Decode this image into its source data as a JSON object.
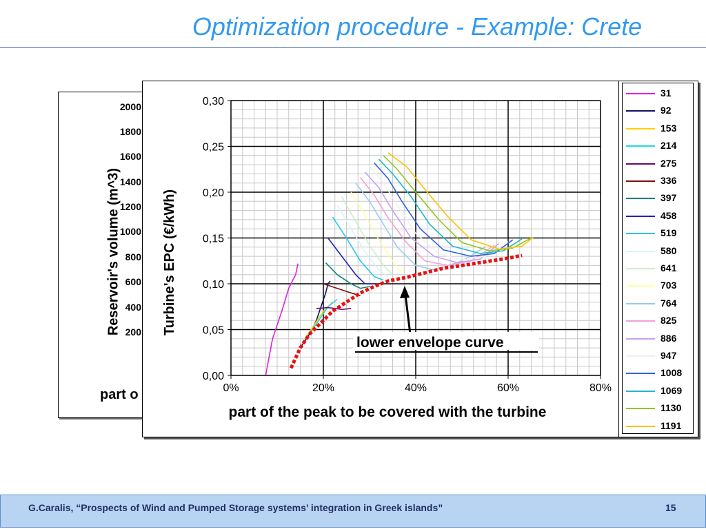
{
  "slide": {
    "title": "Optimization procedure - Example: Crete",
    "footer_text": "G.Caralis, “Prospects of Wind and Pumped Storage systems’ integration in Greek islands”",
    "page_number": "15"
  },
  "background_chart": {
    "ylabel": "Reservoir's volume (m^3)",
    "yticks": [
      "2000",
      "1800",
      "1600",
      "1400",
      "1200",
      "1000",
      "800",
      "600",
      "400",
      "200"
    ],
    "xlabel_fragment": "part o"
  },
  "chart_data": {
    "type": "line",
    "xlabel": "part of the peak to be covered with the turbine",
    "ylabel": "Turbine's EPC (€/kWh)",
    "xlim": [
      0,
      0.8
    ],
    "ylim": [
      0,
      0.3
    ],
    "xticks": [
      "0%",
      "20%",
      "40%",
      "60%",
      "80%"
    ],
    "yticks": [
      "0,00",
      "0,05",
      "0,10",
      "0,15",
      "0,20",
      "0,25",
      "0,30"
    ],
    "grid": true,
    "legend_position": "right",
    "annotation": "lower envelope curve",
    "series": [
      {
        "name": "31",
        "color": "#e020e0",
        "x": [
          0.075,
          0.09,
          0.11,
          0.125,
          0.14,
          0.145
        ],
        "y": [
          0.0,
          0.04,
          0.07,
          0.095,
          0.11,
          0.122
        ]
      },
      {
        "name": "92",
        "color": "#101060",
        "x": [
          0.15,
          0.17,
          0.185,
          0.195,
          0.205,
          0.21,
          0.215
        ],
        "y": [
          0.03,
          0.045,
          0.06,
          0.075,
          0.09,
          0.1,
          0.103
        ]
      },
      {
        "name": "153",
        "color": "#ffd000",
        "x": [
          0.16,
          0.18,
          0.2,
          0.22
        ],
        "y": [
          0.04,
          0.055,
          0.07,
          0.08
        ]
      },
      {
        "name": "214",
        "color": "#20d8e0",
        "x": [
          0.17,
          0.19,
          0.21,
          0.23
        ],
        "y": [
          0.045,
          0.06,
          0.075,
          0.083
        ]
      },
      {
        "name": "275",
        "color": "#6a0a6a",
        "x": [
          0.185,
          0.21,
          0.24,
          0.26
        ],
        "y": [
          0.073,
          0.074,
          0.072,
          0.073
        ]
      },
      {
        "name": "336",
        "color": "#7a1010",
        "x": [
          0.2,
          0.23,
          0.26,
          0.28
        ],
        "y": [
          0.1,
          0.095,
          0.09,
          0.087
        ]
      },
      {
        "name": "397",
        "color": "#108080",
        "x": [
          0.205,
          0.23,
          0.26,
          0.28,
          0.3
        ],
        "y": [
          0.123,
          0.11,
          0.1,
          0.095,
          0.097
        ]
      },
      {
        "name": "458",
        "color": "#2020c0",
        "x": [
          0.21,
          0.24,
          0.27,
          0.29,
          0.31
        ],
        "y": [
          0.15,
          0.13,
          0.11,
          0.1,
          0.1
        ]
      },
      {
        "name": "519",
        "color": "#20c8f0",
        "x": [
          0.22,
          0.25,
          0.28,
          0.31,
          0.33
        ],
        "y": [
          0.173,
          0.15,
          0.125,
          0.108,
          0.104
        ]
      },
      {
        "name": "580",
        "color": "#d8f4fa",
        "x": [
          0.23,
          0.26,
          0.29,
          0.32,
          0.34
        ],
        "y": [
          0.186,
          0.16,
          0.135,
          0.115,
          0.108
        ]
      },
      {
        "name": "641",
        "color": "#c8f0c8",
        "x": [
          0.24,
          0.27,
          0.3,
          0.33,
          0.35
        ],
        "y": [
          0.195,
          0.168,
          0.142,
          0.12,
          0.11
        ]
      },
      {
        "name": "703",
        "color": "#ffffa8",
        "x": [
          0.26,
          0.29,
          0.32,
          0.35,
          0.37
        ],
        "y": [
          0.2,
          0.175,
          0.148,
          0.125,
          0.112
        ]
      },
      {
        "name": "764",
        "color": "#9ac8f0",
        "x": [
          0.27,
          0.3,
          0.33,
          0.36,
          0.4,
          0.44,
          0.5,
          0.55
        ],
        "y": [
          0.21,
          0.19,
          0.165,
          0.14,
          0.12,
          0.115,
          0.125,
          0.14
        ]
      },
      {
        "name": "825",
        "color": "#f0a0d8",
        "x": [
          0.28,
          0.31,
          0.34,
          0.38,
          0.42,
          0.47,
          0.52,
          0.57
        ],
        "y": [
          0.216,
          0.197,
          0.172,
          0.145,
          0.125,
          0.12,
          0.125,
          0.142
        ]
      },
      {
        "name": "886",
        "color": "#c8a0f0",
        "x": [
          0.29,
          0.32,
          0.35,
          0.39,
          0.44,
          0.49,
          0.54,
          0.58
        ],
        "y": [
          0.222,
          0.205,
          0.18,
          0.15,
          0.13,
          0.123,
          0.127,
          0.144
        ]
      },
      {
        "name": "947",
        "color": "#f0f0f0",
        "x": [
          0.3,
          0.33,
          0.36,
          0.4,
          0.45,
          0.5,
          0.55,
          0.6
        ],
        "y": [
          0.228,
          0.21,
          0.186,
          0.155,
          0.133,
          0.126,
          0.13,
          0.146
        ]
      },
      {
        "name": "1008",
        "color": "#3060e0",
        "x": [
          0.31,
          0.34,
          0.37,
          0.41,
          0.46,
          0.52,
          0.57,
          0.61
        ],
        "y": [
          0.232,
          0.215,
          0.19,
          0.16,
          0.137,
          0.13,
          0.133,
          0.148
        ]
      },
      {
        "name": "1069",
        "color": "#20b8c8",
        "x": [
          0.32,
          0.35,
          0.39,
          0.43,
          0.48,
          0.54,
          0.59,
          0.63
        ],
        "y": [
          0.236,
          0.22,
          0.195,
          0.165,
          0.141,
          0.133,
          0.136,
          0.149
        ]
      },
      {
        "name": "1130",
        "color": "#90c820",
        "x": [
          0.33,
          0.36,
          0.4,
          0.45,
          0.5,
          0.56,
          0.61,
          0.65
        ],
        "y": [
          0.24,
          0.225,
          0.2,
          0.17,
          0.145,
          0.136,
          0.139,
          0.15
        ]
      },
      {
        "name": "1191",
        "color": "#ffc000",
        "x": [
          0.34,
          0.38,
          0.42,
          0.47,
          0.52,
          0.58,
          0.63,
          0.655
        ],
        "y": [
          0.243,
          0.228,
          0.203,
          0.173,
          0.148,
          0.138,
          0.141,
          0.151
        ]
      }
    ],
    "envelope": {
      "color": "#e81010",
      "x": [
        0.13,
        0.15,
        0.17,
        0.2,
        0.22,
        0.25,
        0.28,
        0.31,
        0.34,
        0.38,
        0.42,
        0.46,
        0.5,
        0.55,
        0.6,
        0.63
      ],
      "y": [
        0.008,
        0.03,
        0.045,
        0.06,
        0.07,
        0.08,
        0.09,
        0.097,
        0.103,
        0.107,
        0.112,
        0.117,
        0.12,
        0.124,
        0.128,
        0.131
      ]
    }
  }
}
